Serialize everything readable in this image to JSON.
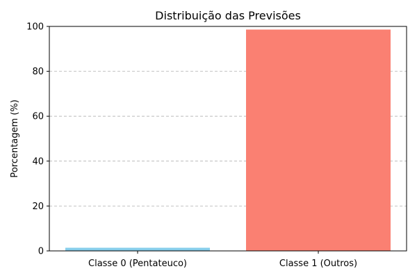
{
  "chart_data": {
    "type": "bar",
    "title": "Distribuição das Previsões",
    "xlabel": "",
    "ylabel": "Porcentagem (%)",
    "categories": [
      "Classe 0 (Pentateuco)",
      "Classe 1 (Outros)"
    ],
    "values": [
      1.4,
      98.6
    ],
    "colors": [
      "#87ceeb",
      "#fa8072"
    ],
    "ylim": [
      0,
      100
    ],
    "yticks": [
      0,
      20,
      40,
      60,
      80,
      100
    ],
    "ytick_labels": [
      "0",
      "20",
      "40",
      "60",
      "80",
      "100"
    ],
    "grid": "y-dashed"
  }
}
